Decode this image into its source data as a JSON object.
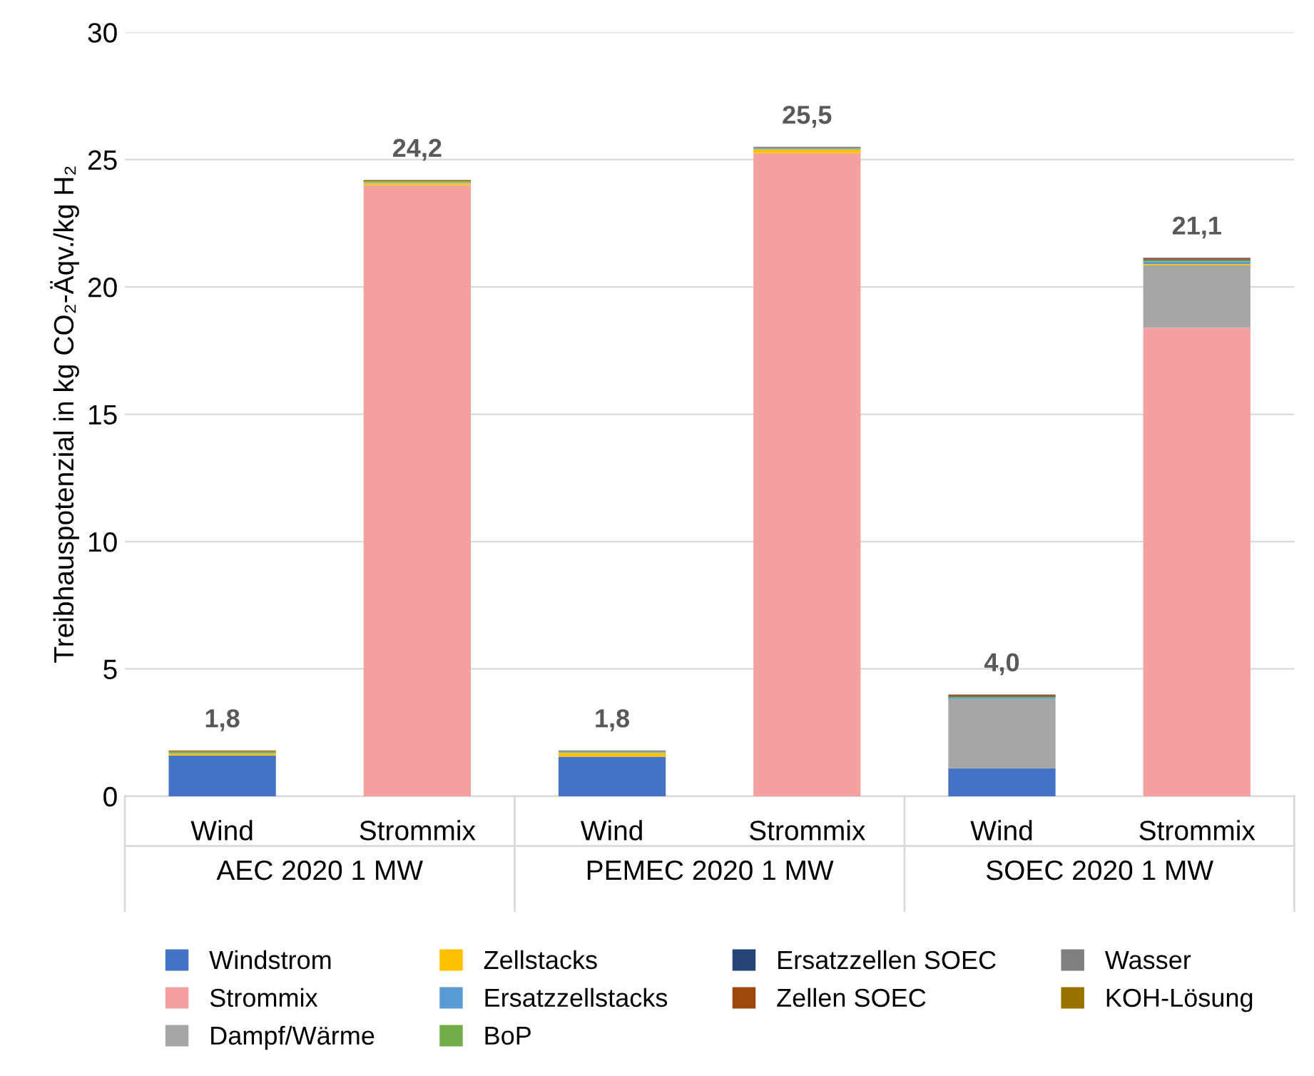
{
  "chart_data": {
    "type": "bar",
    "stacked": true,
    "ylabel": "Treibhauspotenzial in kg CO₂-Äqv./kg H₂",
    "categories": [
      "Wind",
      "Strommix",
      "Wind",
      "Strommix",
      "Wind",
      "Strommix"
    ],
    "annotations": [
      "AEC 2020 1 MW",
      "PEMEC 2020 1 MW",
      "SOEC 2020 1 MW"
    ],
    "series": [
      {
        "name": "Windstrom",
        "color": "#4472c4",
        "values": [
          1.6,
          0,
          1.55,
          0,
          1.1,
          0
        ]
      },
      {
        "name": "Strommix",
        "color": "#f4a0a0",
        "values": [
          0,
          24.0,
          0,
          25.25,
          0,
          18.4
        ]
      },
      {
        "name": "Dampf/Wärme",
        "color": "#a6a6a6",
        "values": [
          0,
          0,
          0,
          0,
          2.7,
          2.45
        ]
      },
      {
        "name": "Zellstacks",
        "color": "#ffc000",
        "values": [
          0.08,
          0.08,
          0.15,
          0.15,
          0,
          0.05
        ]
      },
      {
        "name": "Ersatzzellstacks",
        "color": "#5b9bd5",
        "values": [
          0.02,
          0.02,
          0.02,
          0.02,
          0.05,
          0.1
        ]
      },
      {
        "name": "BoP",
        "color": "#70ad47",
        "values": [
          0.04,
          0.04,
          0.03,
          0.03,
          0.05,
          0.05
        ]
      },
      {
        "name": "Ersatzzellen SOEC",
        "color": "#264478",
        "values": [
          0,
          0,
          0,
          0,
          0.03,
          0.03
        ]
      },
      {
        "name": "Zellen SOEC",
        "color": "#9e480e",
        "values": [
          0,
          0,
          0,
          0,
          0.05,
          0.05
        ]
      },
      {
        "name": "Wasser",
        "color": "#7f7f7f",
        "values": [
          0.01,
          0.01,
          0.05,
          0.05,
          0.02,
          0.02
        ]
      },
      {
        "name": "KOH-Lösung",
        "color": "#997300",
        "values": [
          0.05,
          0.05,
          0,
          0,
          0,
          0
        ]
      }
    ],
    "totals": [
      "1,8",
      "24,2",
      "1,8",
      "25,5",
      "4,0",
      "21,1"
    ],
    "ylim": [
      0,
      30
    ],
    "yticks": [
      0,
      5,
      10,
      15,
      20,
      25,
      30
    ],
    "grid": "y",
    "legend": "bottom"
  }
}
